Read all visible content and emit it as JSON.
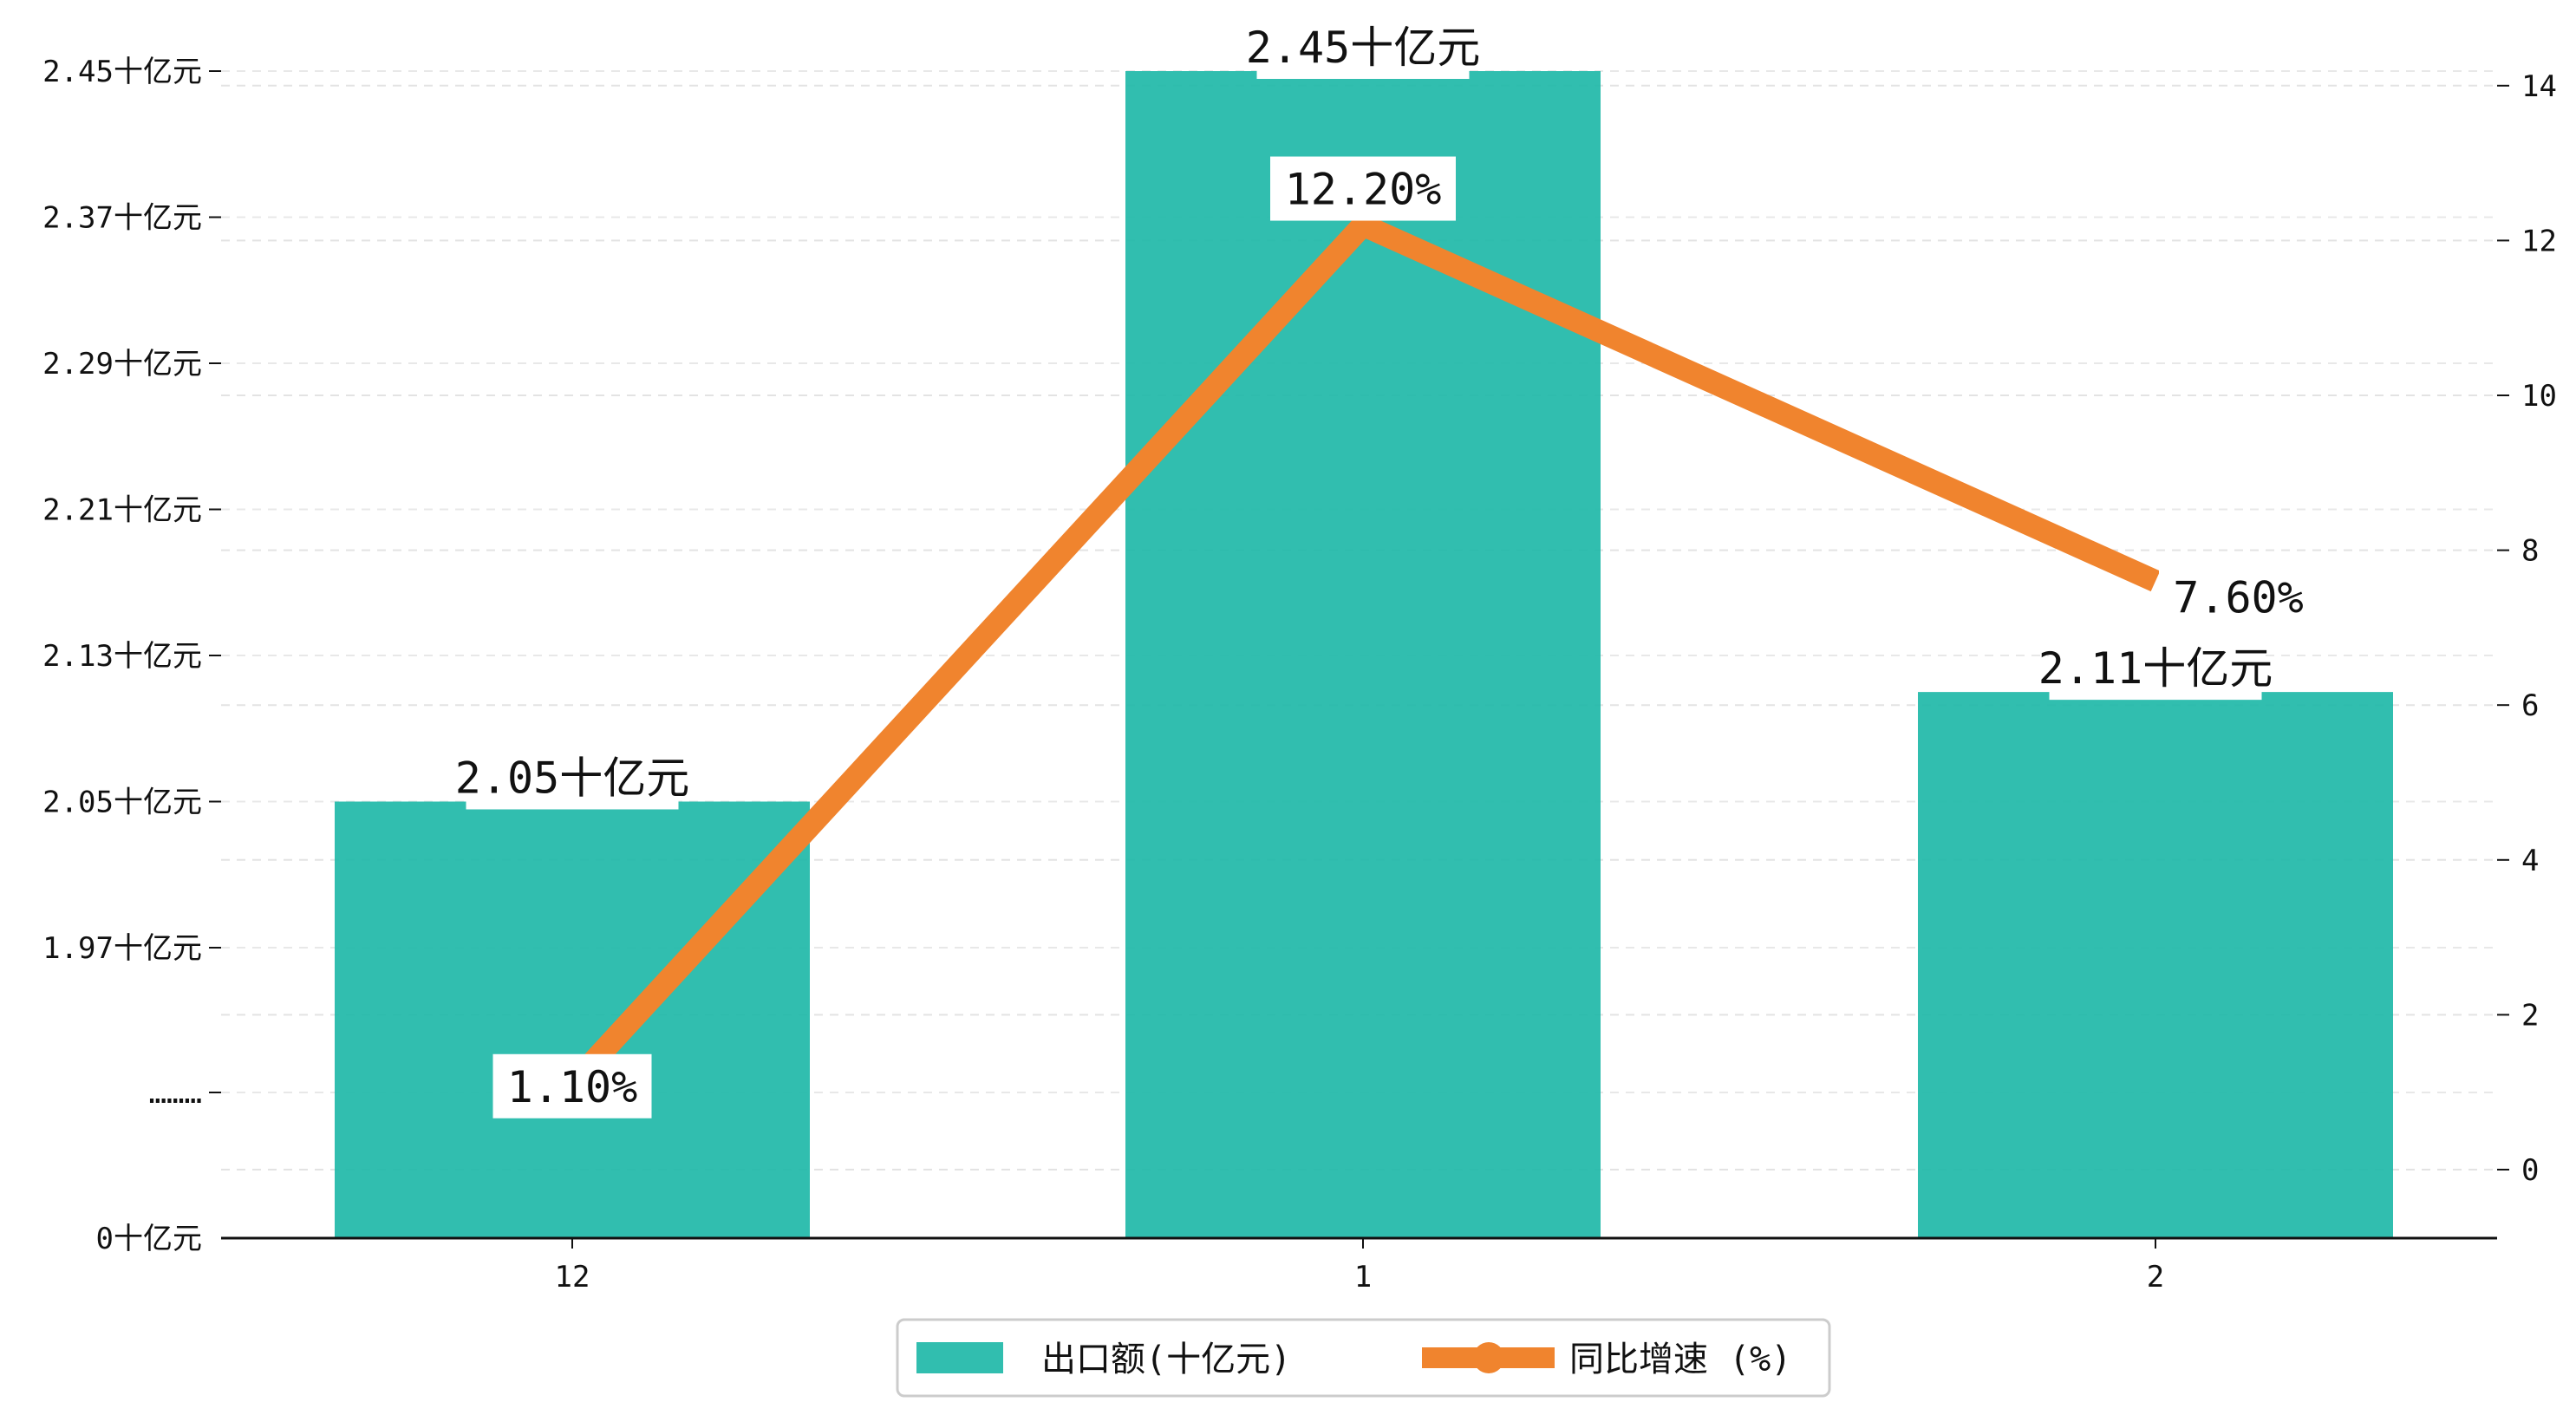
{
  "chart_data": {
    "type": "bar",
    "categories": [
      "12",
      "1",
      "2"
    ],
    "series": [
      {
        "name": "出口额(十亿元)",
        "type": "bar",
        "axis": "left",
        "values": [
          2.05,
          2.45,
          2.11
        ],
        "labels": [
          "2.05十亿元",
          "2.45十亿元",
          "2.11十亿元"
        ],
        "color": "#1fb8a8"
      },
      {
        "name": "同比增速 (%)",
        "type": "line",
        "axis": "right",
        "values": [
          1.1,
          12.2,
          7.6
        ],
        "labels": [
          "1.10%",
          "12.20%",
          "7.60%"
        ],
        "color": "#f0842e"
      }
    ],
    "y_left": {
      "ticks": [
        {
          "pos": 0,
          "label": "0十亿元"
        },
        {
          "pos": 0.5,
          "label": "………"
        },
        {
          "pos": 1.97,
          "label": "1.97十亿元"
        },
        {
          "pos": 2.05,
          "label": "2.05十亿元"
        },
        {
          "pos": 2.13,
          "label": "2.13十亿元"
        },
        {
          "pos": 2.21,
          "label": "2.21十亿元"
        },
        {
          "pos": 2.29,
          "label": "2.29十亿元"
        },
        {
          "pos": 2.37,
          "label": "2.37十亿元"
        },
        {
          "pos": 2.45,
          "label": "2.45十亿元"
        }
      ],
      "broken_axis": true
    },
    "y_right": {
      "ticks": [
        "0",
        "2",
        "4",
        "6",
        "8",
        "10",
        "12",
        "14"
      ],
      "ylim": [
        -0.9,
        14.3
      ]
    },
    "grid": "horizontal-dashed",
    "legend_position": "bottom-center"
  }
}
